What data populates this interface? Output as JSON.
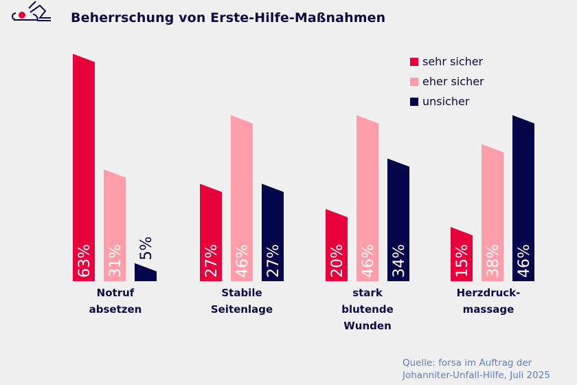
{
  "title": "Beherrschung von Erste-Hilfe-Maßnahmen",
  "logo_icon": "johanniter-logo-icon",
  "source": {
    "line1": "Quelle: forsa im Auftrag der",
    "line2": "Johanniter-Unfall-Hilfe, Juli 2025"
  },
  "colors": {
    "background": "#f0f0f0",
    "sehr_sicher": "#e8003c",
    "eher_sicher": "#ff9ea8",
    "unsicher": "#05064a",
    "text": "#0a0a45",
    "source": "#5b7fc0"
  },
  "chart_data": {
    "type": "bar",
    "title": "Beherrschung von Erste-Hilfe-Maßnahmen",
    "xlabel": "",
    "ylabel": "",
    "unit": "%",
    "ylim": [
      0,
      63
    ],
    "grid": false,
    "legend_position": "top-right",
    "categories": [
      [
        "Notruf",
        "absetzen"
      ],
      [
        "Stabile",
        "Seitenlage"
      ],
      [
        "stark",
        "blutende",
        "Wunden"
      ],
      [
        "Herzdruck-",
        "massage"
      ]
    ],
    "series": [
      {
        "name": "sehr sicher",
        "color": "#e8003c",
        "values": [
          63,
          27,
          20,
          15
        ]
      },
      {
        "name": "eher sicher",
        "color": "#ff9ea8",
        "values": [
          31,
          46,
          46,
          38
        ]
      },
      {
        "name": "unsicher",
        "color": "#05064a",
        "values": [
          5,
          27,
          34,
          46
        ]
      }
    ],
    "data_labels": [
      [
        "63%",
        "27%",
        "20%",
        "15%"
      ],
      [
        "31%",
        "46%",
        "46%",
        "38%"
      ],
      [
        "5%",
        "27%",
        "34%",
        "46%"
      ]
    ]
  }
}
